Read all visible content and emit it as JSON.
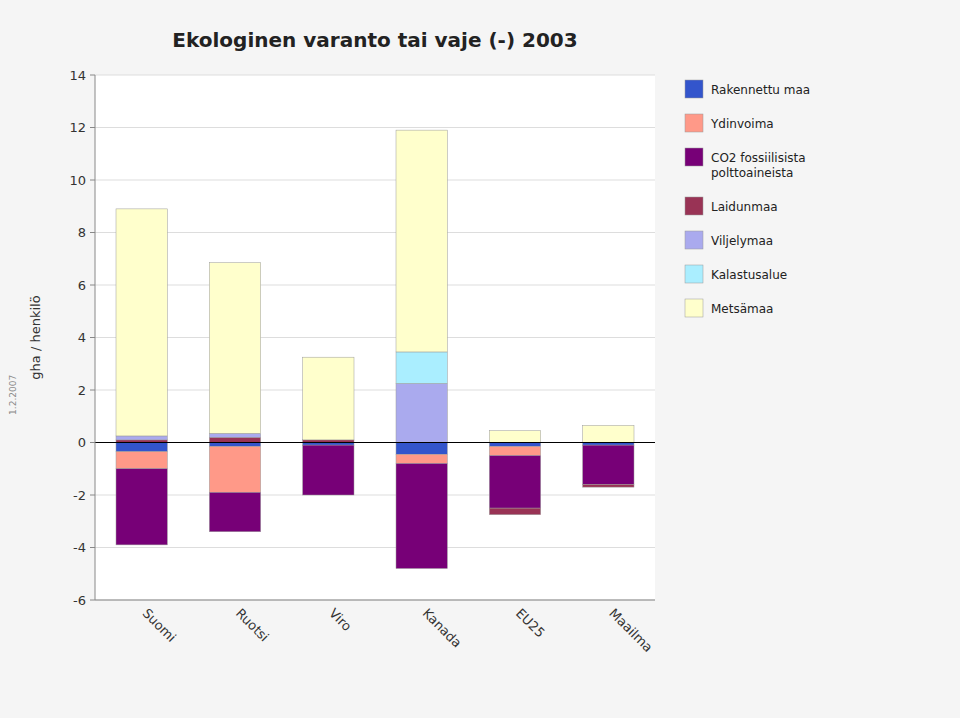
{
  "chart_data": {
    "type": "bar",
    "stacked": true,
    "title": "Ekologinen varanto tai vaje (-) 2003",
    "ylabel": "gha / henkilö",
    "annotations": [
      "1.2.2007"
    ],
    "categories": [
      "Suomi",
      "Ruotsi",
      "Viro",
      "Kanada",
      "EU25",
      "Maailma"
    ],
    "ylim": [
      -6,
      14
    ],
    "yticks": [
      -6,
      -4,
      -2,
      0,
      2,
      4,
      6,
      8,
      10,
      12,
      14
    ],
    "grid": true,
    "series": [
      {
        "name": "Rakennettu maa",
        "color": "#3355cc",
        "values": [
          -0.35,
          -0.15,
          -0.1,
          -0.45,
          -0.15,
          -0.1
        ]
      },
      {
        "name": "Ydinvoima",
        "color": "#ff9988",
        "values": [
          -0.65,
          -1.75,
          0.0,
          -0.35,
          -0.35,
          0.0
        ]
      },
      {
        "name": "CO2 fossiilisista\npolttoaineista",
        "color": "#770077",
        "values": [
          -2.9,
          -1.5,
          -1.9,
          -4.0,
          -2.0,
          -1.5
        ]
      },
      {
        "name": "Laidunmaa",
        "color": "#993355",
        "values": [
          0.1,
          0.2,
          0.1,
          0.0,
          -0.25,
          -0.1
        ]
      },
      {
        "name": "Viljelymaa",
        "color": "#aaaaee",
        "values": [
          0.15,
          0.15,
          0.0,
          2.25,
          0.0,
          0.0
        ]
      },
      {
        "name": "Kalastusalue",
        "color": "#aaeeff",
        "values": [
          0.0,
          0.0,
          0.0,
          1.2,
          0.0,
          0.0
        ]
      },
      {
        "name": "Metsämaa",
        "color": "#ffffcc",
        "values": [
          8.65,
          6.5,
          3.15,
          8.45,
          0.45,
          0.65
        ]
      }
    ]
  }
}
